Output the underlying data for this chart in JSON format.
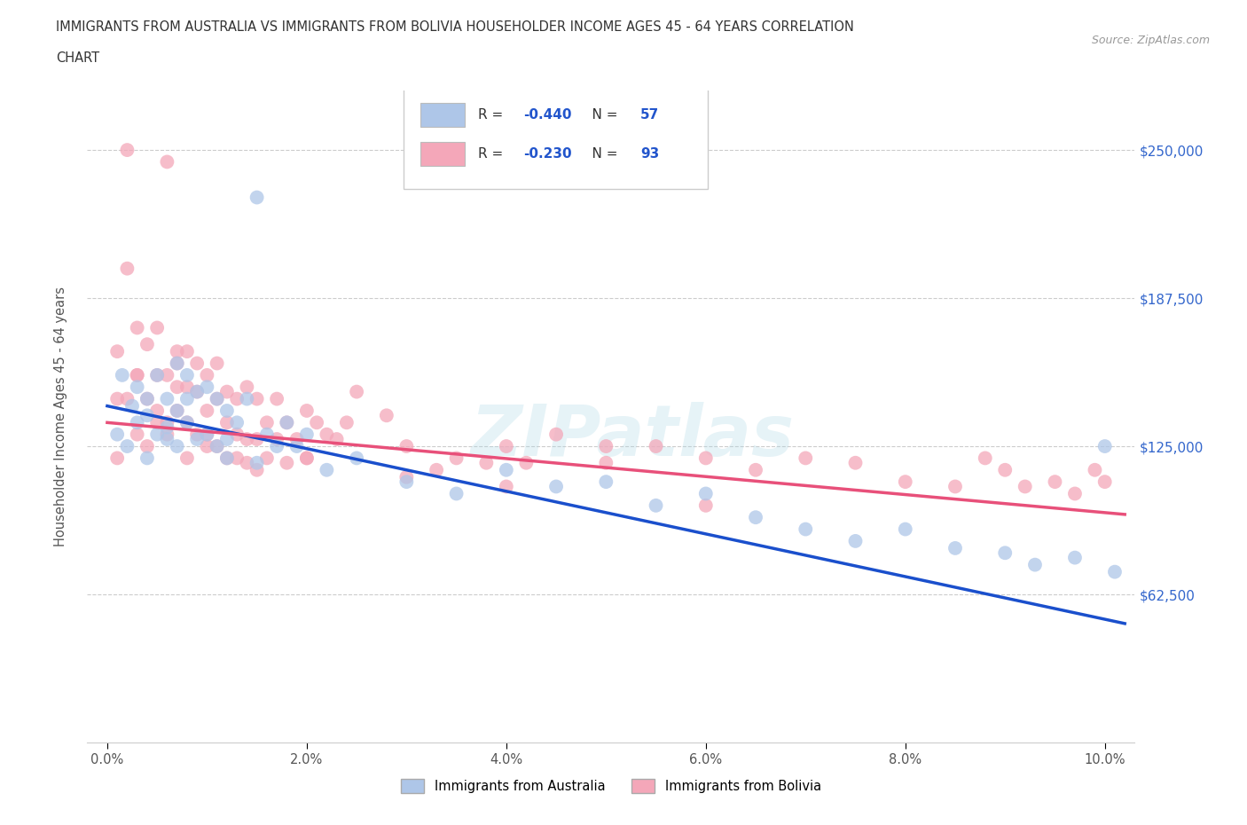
{
  "title_line1": "IMMIGRANTS FROM AUSTRALIA VS IMMIGRANTS FROM BOLIVIA HOUSEHOLDER INCOME AGES 45 - 64 YEARS CORRELATION",
  "title_line2": "CHART",
  "source_text": "Source: ZipAtlas.com",
  "watermark": "ZIPatlas",
  "ylabel": "Householder Income Ages 45 - 64 years",
  "xlim": [
    -0.002,
    0.103
  ],
  "ylim": [
    0,
    275000
  ],
  "xticks": [
    0.0,
    0.02,
    0.04,
    0.06,
    0.08,
    0.1
  ],
  "xticklabels": [
    "0.0%",
    "2.0%",
    "4.0%",
    "6.0%",
    "8.0%",
    "10.0%"
  ],
  "yticks": [
    62500,
    125000,
    187500,
    250000
  ],
  "yticklabels": [
    "$62,500",
    "$125,000",
    "$187,500",
    "$250,000"
  ],
  "australia_color": "#aec6e8",
  "bolivia_color": "#f4a7b9",
  "australia_line_color": "#1a4fcc",
  "bolivia_line_color": "#e8507a",
  "australia_R": -0.44,
  "australia_N": 57,
  "bolivia_R": -0.23,
  "bolivia_N": 93,
  "legend_label_australia": "Immigrants from Australia",
  "legend_label_bolivia": "Immigrants from Bolivia",
  "aus_intercept": 142000,
  "aus_slope": -900000,
  "bol_intercept": 135000,
  "bol_slope": -380000,
  "australia_scatter_x": [
    0.001,
    0.002,
    0.003,
    0.003,
    0.004,
    0.004,
    0.005,
    0.005,
    0.006,
    0.006,
    0.007,
    0.007,
    0.007,
    0.008,
    0.008,
    0.009,
    0.009,
    0.01,
    0.01,
    0.011,
    0.011,
    0.012,
    0.012,
    0.013,
    0.014,
    0.015,
    0.016,
    0.017,
    0.018,
    0.019,
    0.02,
    0.022,
    0.025,
    0.03,
    0.035,
    0.04,
    0.045,
    0.05,
    0.055,
    0.06,
    0.065,
    0.07,
    0.075,
    0.08,
    0.085,
    0.09,
    0.093,
    0.097,
    0.1,
    0.101,
    0.0015,
    0.0025,
    0.004,
    0.006,
    0.008,
    0.012,
    0.015
  ],
  "australia_scatter_y": [
    130000,
    125000,
    150000,
    135000,
    145000,
    120000,
    155000,
    130000,
    145000,
    128000,
    160000,
    140000,
    125000,
    155000,
    135000,
    148000,
    128000,
    150000,
    130000,
    145000,
    125000,
    140000,
    120000,
    135000,
    145000,
    230000,
    130000,
    125000,
    135000,
    125000,
    130000,
    115000,
    120000,
    110000,
    105000,
    115000,
    108000,
    110000,
    100000,
    105000,
    95000,
    90000,
    85000,
    90000,
    82000,
    80000,
    75000,
    78000,
    125000,
    72000,
    155000,
    142000,
    138000,
    133000,
    145000,
    128000,
    118000
  ],
  "bolivia_scatter_x": [
    0.001,
    0.001,
    0.002,
    0.002,
    0.003,
    0.003,
    0.003,
    0.004,
    0.004,
    0.004,
    0.005,
    0.005,
    0.005,
    0.006,
    0.006,
    0.006,
    0.007,
    0.007,
    0.007,
    0.007,
    0.008,
    0.008,
    0.008,
    0.009,
    0.009,
    0.009,
    0.01,
    0.01,
    0.01,
    0.011,
    0.011,
    0.011,
    0.012,
    0.012,
    0.012,
    0.013,
    0.013,
    0.013,
    0.014,
    0.014,
    0.015,
    0.015,
    0.015,
    0.016,
    0.016,
    0.017,
    0.017,
    0.018,
    0.018,
    0.019,
    0.02,
    0.02,
    0.021,
    0.022,
    0.023,
    0.024,
    0.025,
    0.028,
    0.03,
    0.033,
    0.035,
    0.038,
    0.04,
    0.042,
    0.045,
    0.05,
    0.055,
    0.06,
    0.065,
    0.07,
    0.075,
    0.08,
    0.085,
    0.088,
    0.09,
    0.092,
    0.095,
    0.097,
    0.099,
    0.1,
    0.001,
    0.002,
    0.003,
    0.005,
    0.006,
    0.008,
    0.01,
    0.014,
    0.02,
    0.03,
    0.04,
    0.05,
    0.06
  ],
  "bolivia_scatter_y": [
    145000,
    120000,
    250000,
    200000,
    175000,
    155000,
    130000,
    168000,
    145000,
    125000,
    155000,
    175000,
    140000,
    245000,
    155000,
    135000,
    165000,
    150000,
    140000,
    160000,
    165000,
    150000,
    135000,
    148000,
    160000,
    130000,
    155000,
    140000,
    125000,
    160000,
    145000,
    125000,
    148000,
    135000,
    120000,
    145000,
    130000,
    120000,
    150000,
    128000,
    145000,
    128000,
    115000,
    135000,
    120000,
    145000,
    128000,
    135000,
    118000,
    128000,
    140000,
    120000,
    135000,
    130000,
    128000,
    135000,
    148000,
    138000,
    125000,
    115000,
    120000,
    118000,
    125000,
    118000,
    130000,
    125000,
    125000,
    120000,
    115000,
    120000,
    118000,
    110000,
    108000,
    120000,
    115000,
    108000,
    110000,
    105000,
    115000,
    110000,
    165000,
    145000,
    155000,
    135000,
    130000,
    120000,
    130000,
    118000,
    120000,
    112000,
    108000,
    118000,
    100000
  ]
}
